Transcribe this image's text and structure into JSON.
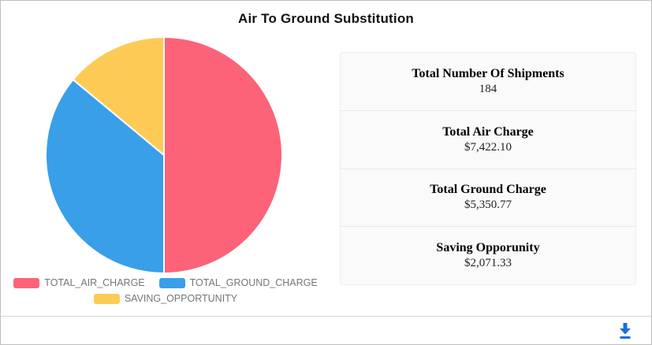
{
  "title": "Air To Ground Substitution",
  "chart_data": {
    "type": "pie",
    "title": "Air To Ground Substitution",
    "labels": [
      "TOTAL_AIR_CHARGE",
      "TOTAL_GROUND_CHARGE",
      "SAVING_OPPORTUNITY"
    ],
    "values": [
      7422.1,
      5350.77,
      2071.33
    ],
    "colors": [
      "#fc6378",
      "#389fe8",
      "#fdcb55"
    ],
    "start_angle": "top",
    "direction": "clockwise",
    "legend_position": "bottom",
    "slice_gap_color": "#ffffff"
  },
  "legend": {
    "row1": [
      "TOTAL_AIR_CHARGE",
      "TOTAL_GROUND_CHARGE"
    ],
    "row2": [
      "SAVING_OPPORTUNITY"
    ]
  },
  "stats": [
    {
      "label": "Total Number Of Shipments",
      "value": "184"
    },
    {
      "label": "Total Air Charge",
      "value": "$7,422.10"
    },
    {
      "label": "Total Ground Charge",
      "value": "$5,350.77"
    },
    {
      "label": "Saving Opporunity",
      "value": "$2,071.33"
    }
  ],
  "footer": {
    "icons": [
      "download-icon"
    ],
    "accent_color": "#1b6fd8"
  },
  "ui_colors": {
    "card_border": "#bfbfbf",
    "panel_background": "#fafafa",
    "legend_text": "#73757a"
  }
}
